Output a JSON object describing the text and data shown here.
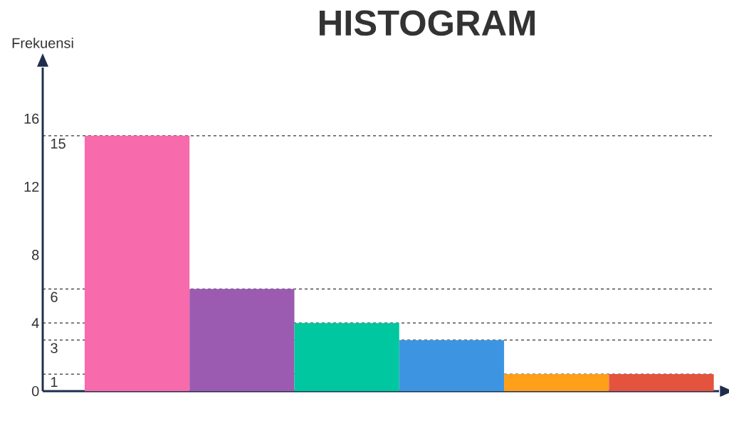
{
  "chart_data": {
    "type": "bar",
    "title": "HISTOGRAM",
    "ylabel": "Frekuensi",
    "categories": [
      null,
      null,
      null,
      null,
      null,
      null
    ],
    "values": [
      15,
      6,
      4,
      3,
      1,
      1
    ],
    "colors": [
      "#f76aab",
      "#9b5bb0",
      "#00c79f",
      "#3d95e1",
      "#ff9f1a",
      "#e4533e"
    ],
    "ylim": [
      0,
      19
    ],
    "yticks": [
      0,
      4,
      8,
      12,
      16
    ],
    "ref_lines": [
      {
        "axis": "y",
        "value": 15,
        "label": "15",
        "line_style": "dashed"
      },
      {
        "axis": "y",
        "value": 6,
        "label": "6",
        "line_style": "dashed"
      },
      {
        "axis": "y",
        "value": 4,
        "line_style": "dashed"
      },
      {
        "axis": "y",
        "value": 3,
        "label": "3",
        "line_style": "dashed"
      },
      {
        "axis": "y",
        "value": 1,
        "label": "1",
        "line_style": "dashed"
      }
    ]
  }
}
